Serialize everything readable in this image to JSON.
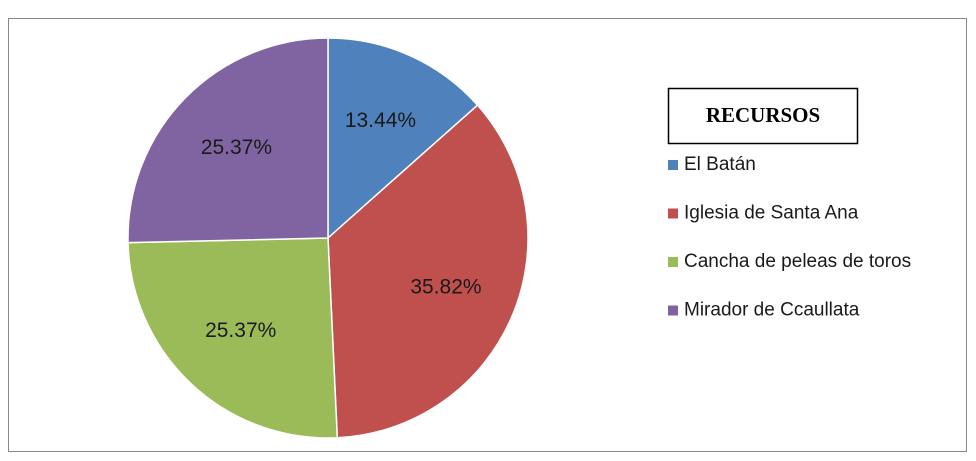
{
  "chart_data": {
    "type": "pie",
    "legend_title": "RECURSOS",
    "categories": [
      "El Batán",
      "Iglesia de Santa Ana",
      "Cancha de peleas de toros",
      "Mirador de Ccaullata"
    ],
    "values": [
      13.44,
      35.82,
      25.37,
      25.37
    ],
    "value_labels": [
      "13.44%",
      "35.82%",
      "25.37%",
      "25.37%"
    ],
    "colors": [
      "#4f81bd",
      "#c0504d",
      "#9bbb59",
      "#8064a2"
    ],
    "legend": "right"
  }
}
